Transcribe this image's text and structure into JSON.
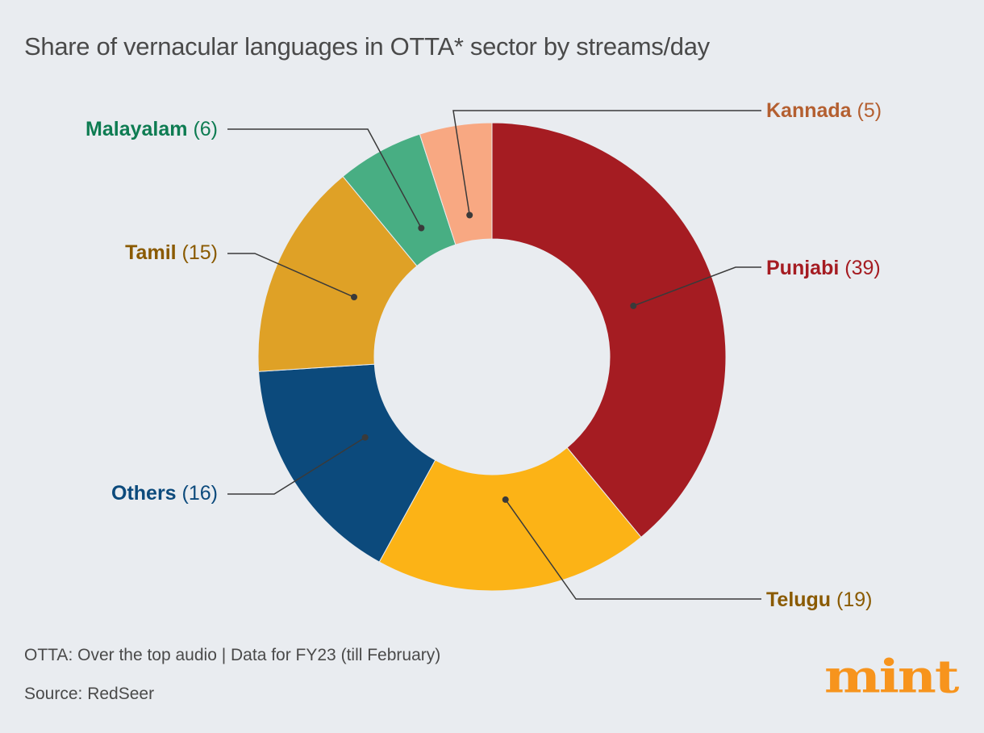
{
  "title": "Share of vernacular languages in OTTA* sector by streams/day",
  "footnote": "OTTA: Over the top audio | Data for FY23 (till February)",
  "source": "Source: RedSeer",
  "logo": "mint",
  "colors": {
    "background": "#e9ecf0",
    "text": "#4a4a4a",
    "logo": "#f7941d",
    "leader": "#3a3a3a"
  },
  "chart_data": {
    "type": "pie",
    "subtype": "donut",
    "title": "Share of vernacular languages in OTTA* sector by streams/day",
    "unit": "streams/day share",
    "slices": [
      {
        "name": "Punjabi",
        "value": 39,
        "value_label": "(39)",
        "color": "#a51c22",
        "label_color": "#a51c22"
      },
      {
        "name": "Telugu",
        "value": 19,
        "value_label": "(19)",
        "color": "#fcb316",
        "label_color": "#8a5a00"
      },
      {
        "name": "Others",
        "value": 16,
        "value_label": "(16)",
        "color": "#0c4a7c",
        "label_color": "#0c4a7c"
      },
      {
        "name": "Tamil",
        "value": 15,
        "value_label": "(15)",
        "color": "#dfa126",
        "label_color": "#8a5a00"
      },
      {
        "name": "Malayalam",
        "value": 6,
        "value_label": "(6)",
        "color": "#48ae83",
        "label_color": "#0e7c52"
      },
      {
        "name": "Kannada",
        "value": 5,
        "value_label": "(5)",
        "color": "#f8a882",
        "label_color": "#b45f30"
      }
    ]
  }
}
